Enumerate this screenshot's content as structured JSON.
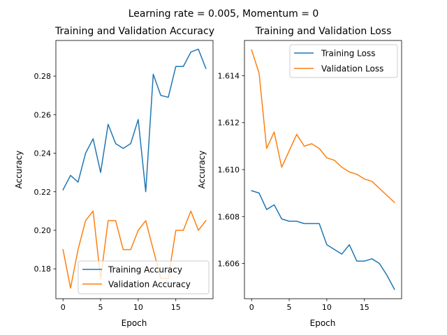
{
  "figure": {
    "suptitle": "Learning rate = 0.005, Momentum = 0"
  },
  "colors": {
    "training": "#1f77b4",
    "validation": "#ff7f0e",
    "axes": "#000000"
  },
  "chart_data": [
    {
      "type": "line",
      "title": "Training and Validation Accuracy",
      "xlabel": "Epoch",
      "ylabel": "Accuracy",
      "xlim": [
        -0.95,
        19.95
      ],
      "ylim": [
        0.1645,
        0.2985
      ],
      "xticks": [
        0,
        5,
        10,
        15
      ],
      "yticks": [
        0.18,
        0.2,
        0.22,
        0.24,
        0.26,
        0.28
      ],
      "ytick_labels": [
        "0.18",
        "0.20",
        "0.22",
        "0.24",
        "0.26",
        "0.28"
      ],
      "legend_position": "lower-right",
      "x": [
        0,
        1,
        2,
        3,
        4,
        5,
        6,
        7,
        8,
        9,
        10,
        11,
        12,
        13,
        14,
        15,
        16,
        17,
        18,
        19
      ],
      "series": [
        {
          "name": "Training Accuracy",
          "color": "#1f77b4",
          "values": [
            0.221,
            0.2285,
            0.225,
            0.24,
            0.2475,
            0.23,
            0.255,
            0.245,
            0.2425,
            0.245,
            0.2575,
            0.22,
            0.281,
            0.27,
            0.269,
            0.285,
            0.285,
            0.2925,
            0.294,
            0.284
          ]
        },
        {
          "name": "Validation Accuracy",
          "color": "#ff7f0e",
          "values": [
            0.19,
            0.17,
            0.19,
            0.205,
            0.21,
            0.175,
            0.205,
            0.205,
            0.19,
            0.19,
            0.2,
            0.205,
            0.19,
            0.175,
            0.175,
            0.2,
            0.2,
            0.21,
            0.2,
            0.205
          ]
        }
      ]
    },
    {
      "type": "line",
      "title": "Training and Validation Loss",
      "xlabel": "Epoch",
      "ylabel": "Accuracy",
      "xlim": [
        -0.95,
        19.95
      ],
      "ylim": [
        1.6045,
        1.6155
      ],
      "xticks": [
        0,
        5,
        10,
        15
      ],
      "yticks": [
        1.606,
        1.608,
        1.61,
        1.612,
        1.614
      ],
      "ytick_labels": [
        "1.606",
        "1.608",
        "1.610",
        "1.612",
        "1.614"
      ],
      "legend_position": "upper-right",
      "x": [
        0,
        1,
        2,
        3,
        4,
        5,
        6,
        7,
        8,
        9,
        10,
        11,
        12,
        13,
        14,
        15,
        16,
        17,
        18,
        19
      ],
      "series": [
        {
          "name": "Training Loss",
          "color": "#1f77b4",
          "values": [
            1.6091,
            1.609,
            1.6083,
            1.6085,
            1.6079,
            1.6078,
            1.6078,
            1.6077,
            1.6077,
            1.6077,
            1.6068,
            1.6066,
            1.6064,
            1.6068,
            1.6061,
            1.6061,
            1.6062,
            1.606,
            1.6055,
            1.6049
          ]
        },
        {
          "name": "Validation Loss",
          "color": "#ff7f0e",
          "values": [
            1.6151,
            1.6141,
            1.6109,
            1.6116,
            1.6101,
            1.6108,
            1.6115,
            1.611,
            1.6111,
            1.6109,
            1.6105,
            1.6104,
            1.6101,
            1.6099,
            1.6098,
            1.6096,
            1.6095,
            1.6092,
            1.6089,
            1.6086
          ]
        }
      ]
    }
  ]
}
